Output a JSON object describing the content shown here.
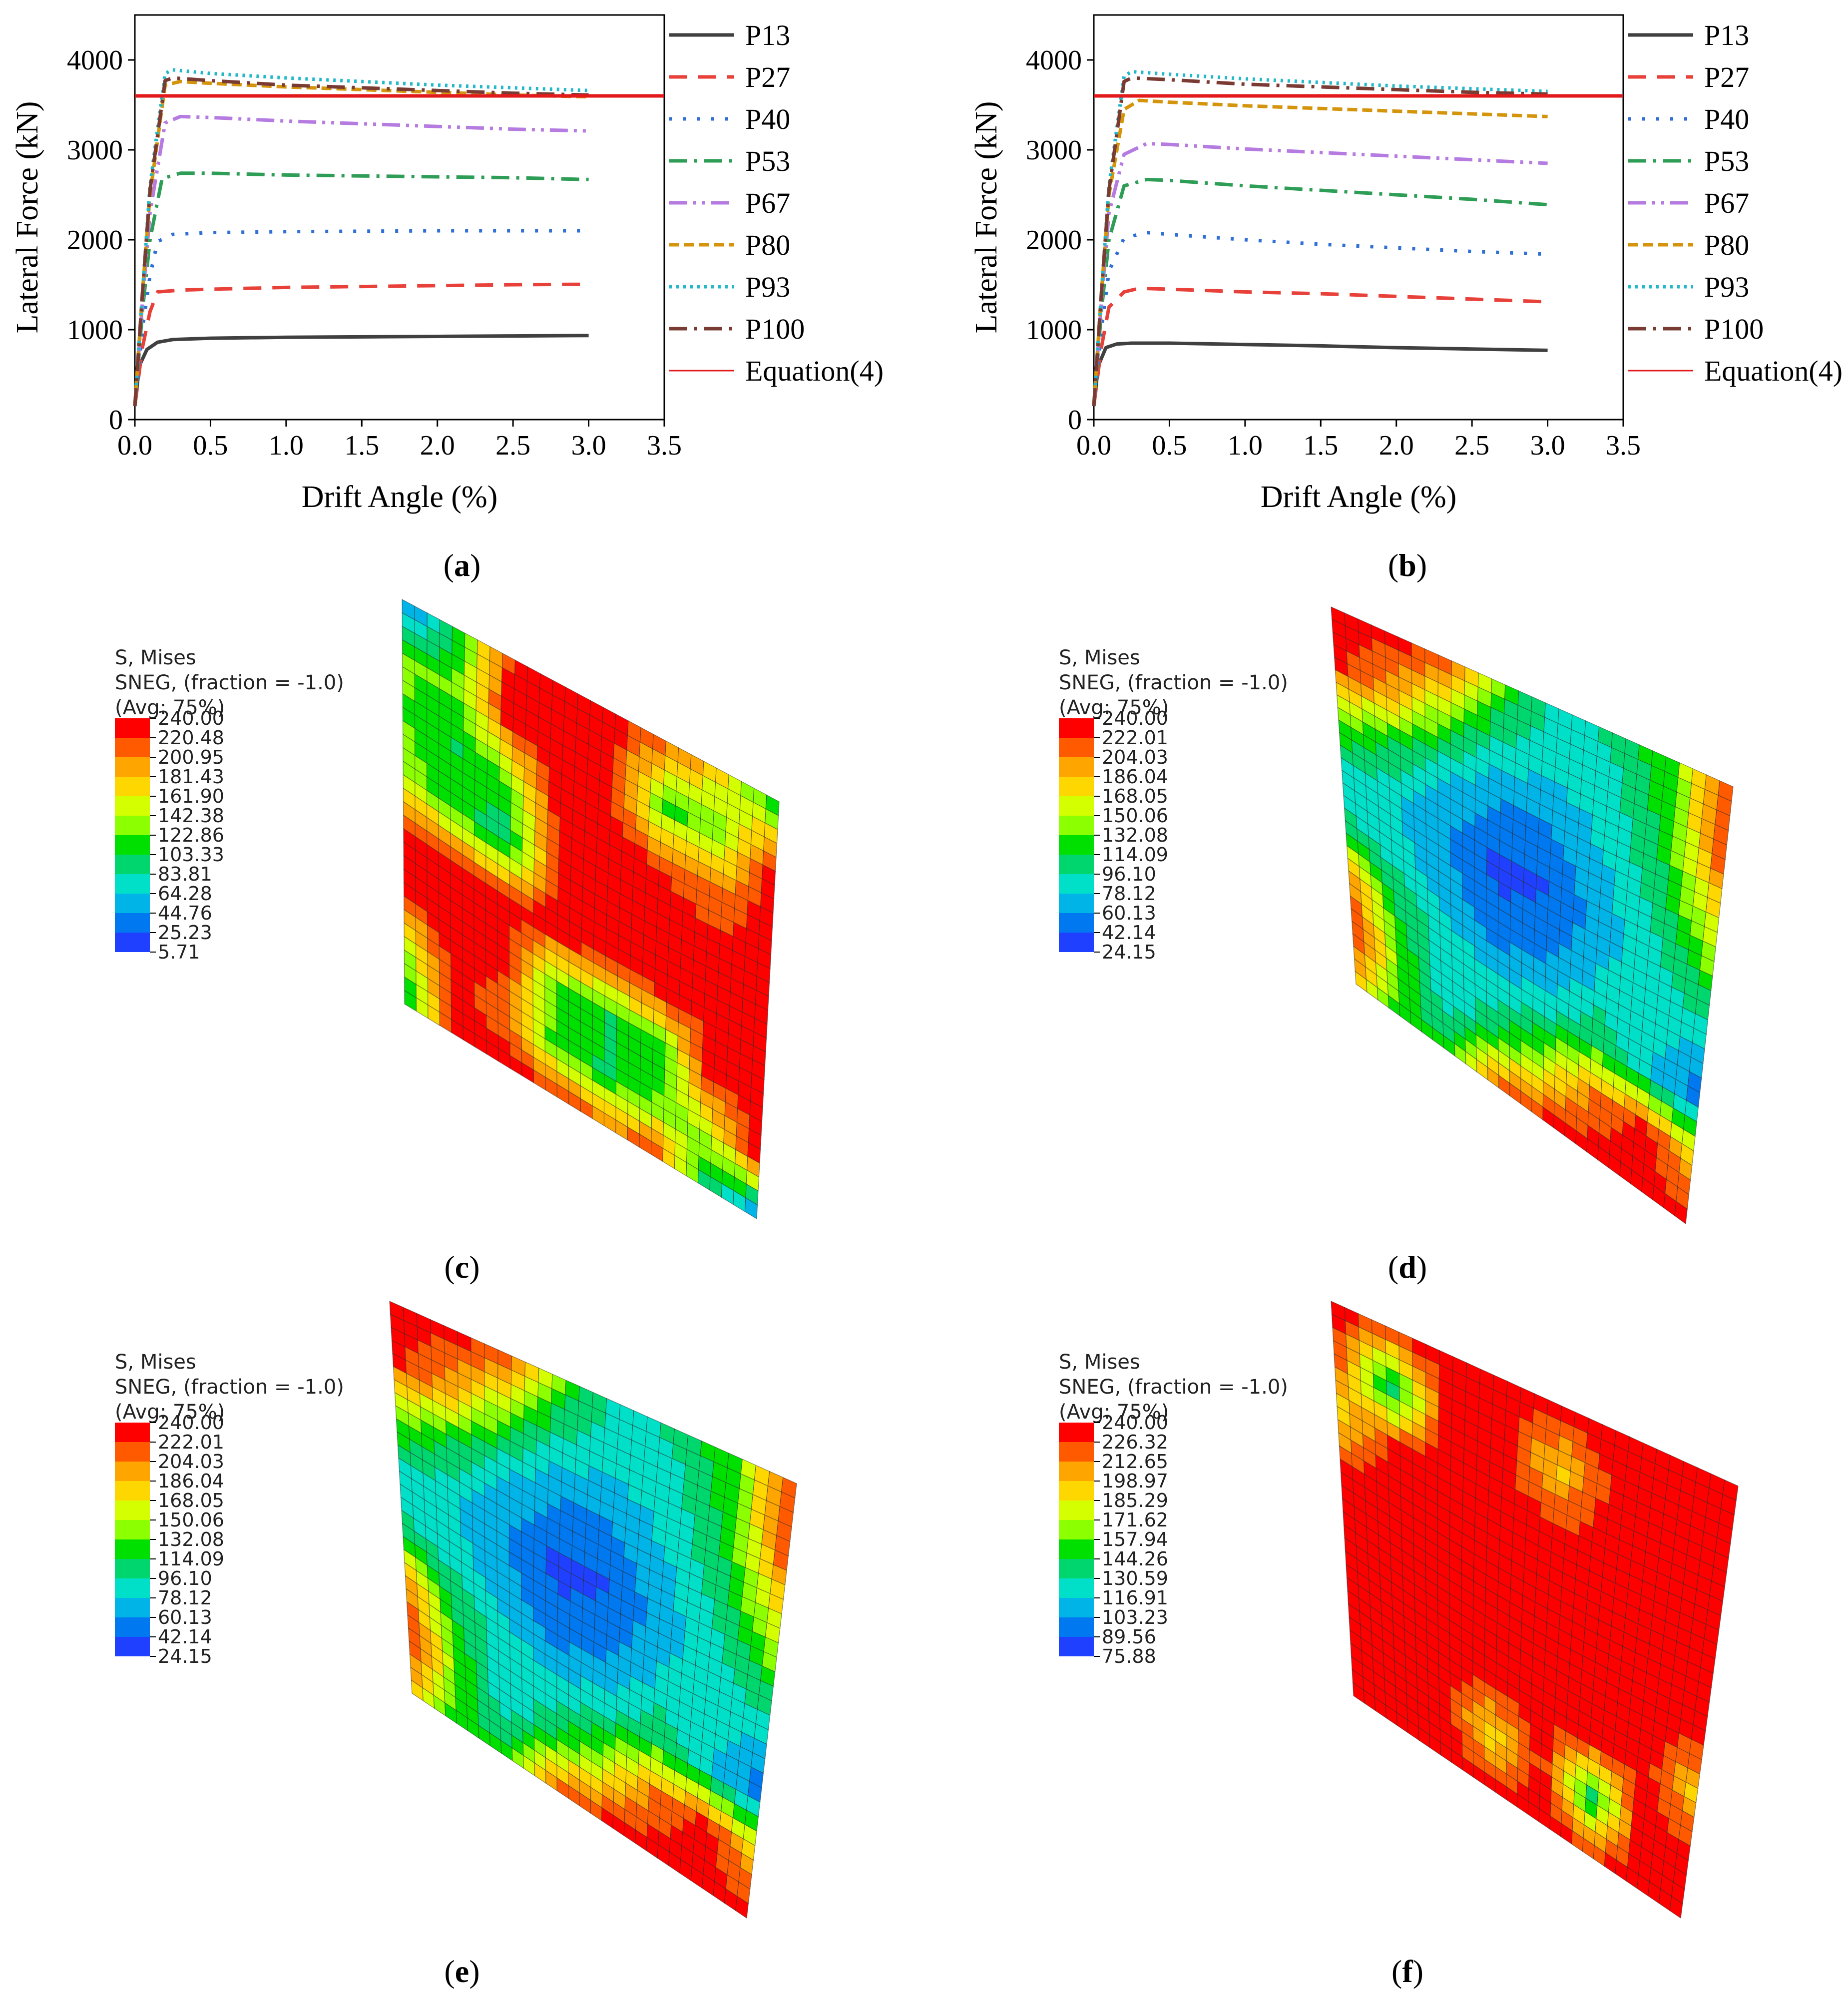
{
  "chart_data": [
    {
      "panel": "a",
      "type": "line",
      "xlabel": "Drift Angle (%)",
      "ylabel": "Lateral Force (kN)",
      "xlim": [
        0,
        3.5
      ],
      "ylim": [
        0,
        4500
      ],
      "xticks": [
        "0.0",
        "0.5",
        "1.0",
        "1.5",
        "2.0",
        "2.5",
        "3.0",
        "3.5"
      ],
      "yticks": [
        "0",
        "1000",
        "2000",
        "3000",
        "4000"
      ],
      "series": [
        {
          "name": "P13",
          "color": "#404040",
          "dash": "solid",
          "x": [
            0,
            0.03,
            0.08,
            0.15,
            0.25,
            0.5,
            1.0,
            1.5,
            2.0,
            2.5,
            3.0
          ],
          "y": [
            150,
            600,
            780,
            860,
            890,
            905,
            915,
            920,
            925,
            930,
            935
          ]
        },
        {
          "name": "P27",
          "color": "#e8413a",
          "dash": "dash",
          "x": [
            0,
            0.05,
            0.1,
            0.15,
            0.3,
            0.5,
            1.0,
            1.5,
            2.0,
            2.5,
            3.0
          ],
          "y": [
            150,
            800,
            1200,
            1420,
            1440,
            1450,
            1470,
            1480,
            1490,
            1500,
            1505
          ]
        },
        {
          "name": "P40",
          "color": "#2f6fd6",
          "dash": "dot",
          "x": [
            0,
            0.05,
            0.1,
            0.15,
            0.25,
            0.5,
            1.0,
            1.5,
            2.0,
            2.5,
            3.0
          ],
          "y": [
            150,
            1000,
            1600,
            1980,
            2060,
            2080,
            2090,
            2095,
            2100,
            2100,
            2100
          ]
        },
        {
          "name": "P53",
          "color": "#2e9e57",
          "dash": "dashdot",
          "x": [
            0,
            0.05,
            0.1,
            0.18,
            0.3,
            0.5,
            1.0,
            1.5,
            2.0,
            2.5,
            3.0
          ],
          "y": [
            150,
            1200,
            2000,
            2680,
            2740,
            2740,
            2720,
            2710,
            2700,
            2690,
            2670
          ]
        },
        {
          "name": "P67",
          "color": "#b57be0",
          "dash": "dashdotdot",
          "x": [
            0,
            0.05,
            0.1,
            0.2,
            0.3,
            0.5,
            1.0,
            1.5,
            2.0,
            2.5,
            3.0
          ],
          "y": [
            150,
            1300,
            2300,
            3300,
            3370,
            3360,
            3320,
            3290,
            3260,
            3230,
            3210
          ]
        },
        {
          "name": "P80",
          "color": "#d4940b",
          "dash": "shortdash",
          "x": [
            0,
            0.05,
            0.1,
            0.2,
            0.3,
            0.5,
            1.0,
            1.5,
            2.0,
            2.5,
            3.0
          ],
          "y": [
            150,
            1400,
            2500,
            3720,
            3760,
            3740,
            3700,
            3670,
            3640,
            3610,
            3590
          ]
        },
        {
          "name": "P93",
          "color": "#22b8c9",
          "dash": "shortdot",
          "x": [
            0,
            0.05,
            0.1,
            0.2,
            0.25,
            0.5,
            1.0,
            1.5,
            2.0,
            2.5,
            3.0
          ],
          "y": [
            150,
            1400,
            2600,
            3850,
            3890,
            3850,
            3800,
            3760,
            3720,
            3690,
            3660
          ]
        },
        {
          "name": "P100",
          "color": "#7a3b33",
          "dash": "dashdot",
          "x": [
            0,
            0.05,
            0.1,
            0.2,
            0.25,
            0.5,
            1.0,
            1.5,
            2.0,
            2.5,
            3.0
          ],
          "y": [
            150,
            1400,
            2550,
            3770,
            3800,
            3770,
            3720,
            3690,
            3660,
            3630,
            3610
          ]
        },
        {
          "name": "Equation(4)",
          "color": "#e31a1c",
          "dash": "solid",
          "x": [
            0,
            3.5
          ],
          "y": [
            3600,
            3600
          ]
        }
      ]
    },
    {
      "panel": "b",
      "type": "line",
      "xlabel": "Drift Angle (%)",
      "ylabel": "Lateral Force (kN)",
      "xlim": [
        0,
        3.5
      ],
      "ylim": [
        0,
        4500
      ],
      "xticks": [
        "0.0",
        "0.5",
        "1.0",
        "1.5",
        "2.0",
        "2.5",
        "3.0",
        "3.5"
      ],
      "yticks": [
        "0",
        "1000",
        "2000",
        "3000",
        "4000"
      ],
      "series": [
        {
          "name": "P13",
          "color": "#404040",
          "dash": "solid",
          "x": [
            0,
            0.03,
            0.08,
            0.15,
            0.25,
            0.5,
            1.0,
            1.5,
            2.0,
            2.5,
            3.0
          ],
          "y": [
            150,
            600,
            800,
            840,
            850,
            850,
            835,
            820,
            800,
            785,
            770
          ]
        },
        {
          "name": "P27",
          "color": "#e8413a",
          "dash": "dash",
          "x": [
            0,
            0.05,
            0.1,
            0.2,
            0.3,
            0.5,
            1.0,
            1.5,
            2.0,
            2.5,
            3.0
          ],
          "y": [
            150,
            800,
            1250,
            1420,
            1460,
            1450,
            1420,
            1400,
            1370,
            1340,
            1310
          ]
        },
        {
          "name": "P40",
          "color": "#2f6fd6",
          "dash": "dot",
          "x": [
            0,
            0.05,
            0.1,
            0.2,
            0.35,
            0.5,
            1.0,
            1.5,
            2.0,
            2.5,
            3.0
          ],
          "y": [
            150,
            1000,
            1650,
            2020,
            2080,
            2060,
            2000,
            1950,
            1910,
            1870,
            1840
          ]
        },
        {
          "name": "P53",
          "color": "#2e9e57",
          "dash": "dashdot",
          "x": [
            0,
            0.05,
            0.1,
            0.2,
            0.35,
            0.5,
            1.0,
            1.5,
            2.0,
            2.5,
            3.0
          ],
          "y": [
            150,
            1200,
            2000,
            2600,
            2670,
            2660,
            2600,
            2550,
            2500,
            2450,
            2390
          ]
        },
        {
          "name": "P67",
          "color": "#b57be0",
          "dash": "dashdotdot",
          "x": [
            0,
            0.05,
            0.1,
            0.2,
            0.35,
            0.5,
            1.0,
            1.5,
            2.0,
            2.5,
            3.0
          ],
          "y": [
            150,
            1300,
            2300,
            2950,
            3070,
            3060,
            3010,
            2970,
            2930,
            2890,
            2850
          ]
        },
        {
          "name": "P80",
          "color": "#d4940b",
          "dash": "shortdash",
          "x": [
            0,
            0.05,
            0.1,
            0.2,
            0.3,
            0.5,
            1.0,
            1.5,
            2.0,
            2.5,
            3.0
          ],
          "y": [
            150,
            1400,
            2500,
            3450,
            3550,
            3530,
            3490,
            3460,
            3430,
            3400,
            3370
          ]
        },
        {
          "name": "P93",
          "color": "#22b8c9",
          "dash": "shortdot",
          "x": [
            0,
            0.05,
            0.1,
            0.2,
            0.25,
            0.5,
            1.0,
            1.5,
            2.0,
            2.5,
            3.0
          ],
          "y": [
            150,
            1400,
            2600,
            3820,
            3870,
            3840,
            3790,
            3750,
            3710,
            3680,
            3650
          ]
        },
        {
          "name": "P100",
          "color": "#7a3b33",
          "dash": "dashdot",
          "x": [
            0,
            0.05,
            0.1,
            0.2,
            0.25,
            0.5,
            1.0,
            1.5,
            2.0,
            2.5,
            3.0
          ],
          "y": [
            150,
            1400,
            2550,
            3760,
            3800,
            3780,
            3730,
            3700,
            3670,
            3640,
            3620
          ]
        },
        {
          "name": "Equation(4)",
          "color": "#e31a1c",
          "dash": "solid",
          "x": [
            0,
            3.5
          ],
          "y": [
            3600,
            3600
          ]
        }
      ]
    },
    {
      "panel": "c",
      "type": "heatmap",
      "legend_header": [
        "S, Mises",
        "SNEG, (fraction = -1.0)",
        "(Avg: 75%)"
      ],
      "levels": [
        "240.00",
        "220.48",
        "200.95",
        "181.43",
        "161.90",
        "142.38",
        "122.86",
        "103.33",
        "83.81",
        "64.28",
        "44.76",
        "25.23",
        "5.71"
      ],
      "dominant": "mixed",
      "field": [
        [
          0.15,
          0.45,
          0.95,
          1.0,
          1.0,
          0.9,
          0.75,
          0.4
        ],
        [
          0.55,
          0.55,
          1.0,
          1.0,
          0.95,
          0.5,
          0.55,
          1.0
        ],
        [
          0.55,
          0.45,
          0.55,
          1.0,
          1.0,
          0.95,
          0.9,
          1.0
        ],
        [
          0.6,
          0.5,
          0.4,
          0.95,
          1.0,
          1.0,
          1.0,
          1.0
        ],
        [
          0.95,
          1.0,
          1.0,
          1.0,
          1.0,
          1.0,
          1.0,
          1.0
        ],
        [
          1.0,
          1.0,
          1.0,
          0.55,
          0.45,
          0.5,
          1.0,
          1.0
        ],
        [
          0.6,
          1.0,
          0.9,
          0.5,
          0.45,
          0.55,
          0.65,
          1.0
        ],
        [
          0.4,
          1.0,
          1.0,
          1.0,
          0.9,
          0.95,
          0.4,
          0.15
        ]
      ]
    },
    {
      "panel": "d",
      "type": "heatmap",
      "legend_header": [
        "S, Mises",
        "SNEG, (fraction = -1.0)",
        "(Avg: 75%)"
      ],
      "levels": [
        "240.00",
        "222.01",
        "204.03",
        "186.04",
        "168.05",
        "150.06",
        "132.08",
        "114.09",
        "96.10",
        "78.12",
        "60.13",
        "42.14",
        "24.15"
      ],
      "dominant": "mixed",
      "field": [
        [
          1.0,
          1.0,
          0.95,
          0.55,
          0.35,
          0.4,
          0.55,
          1.0
        ],
        [
          1.0,
          0.85,
          0.55,
          0.35,
          0.3,
          0.35,
          0.5,
          1.0
        ],
        [
          0.6,
          0.45,
          0.3,
          0.2,
          0.2,
          0.3,
          0.45,
          0.75
        ],
        [
          0.35,
          0.3,
          0.2,
          0.1,
          0.12,
          0.25,
          0.35,
          0.55
        ],
        [
          0.4,
          0.35,
          0.25,
          0.15,
          0.2,
          0.3,
          0.35,
          0.3
        ],
        [
          0.9,
          0.45,
          0.35,
          0.3,
          0.35,
          0.45,
          0.3,
          0.15
        ],
        [
          1.0,
          0.55,
          0.3,
          0.45,
          0.65,
          0.9,
          1.0,
          0.8
        ],
        [
          0.8,
          0.45,
          0.5,
          0.95,
          1.0,
          1.0,
          1.0,
          1.0
        ]
      ]
    },
    {
      "panel": "e",
      "type": "heatmap",
      "legend_header": [
        "S, Mises",
        "SNEG, (fraction = -1.0)",
        "(Avg: 75%)"
      ],
      "levels": [
        "240.00",
        "222.01",
        "204.03",
        "186.04",
        "168.05",
        "150.06",
        "132.08",
        "114.09",
        "96.10",
        "78.12",
        "60.13",
        "42.14",
        "24.15"
      ],
      "dominant": "mixed",
      "field": [
        [
          1.0,
          1.0,
          0.95,
          0.55,
          0.35,
          0.4,
          0.55,
          1.0
        ],
        [
          1.0,
          0.85,
          0.55,
          0.35,
          0.3,
          0.35,
          0.5,
          1.0
        ],
        [
          0.6,
          0.45,
          0.3,
          0.2,
          0.2,
          0.3,
          0.45,
          0.75
        ],
        [
          0.35,
          0.3,
          0.2,
          0.1,
          0.12,
          0.25,
          0.35,
          0.55
        ],
        [
          0.4,
          0.35,
          0.25,
          0.15,
          0.2,
          0.3,
          0.35,
          0.3
        ],
        [
          0.9,
          0.45,
          0.35,
          0.3,
          0.35,
          0.45,
          0.3,
          0.15
        ],
        [
          1.0,
          0.55,
          0.3,
          0.45,
          0.65,
          0.9,
          1.0,
          0.8
        ],
        [
          0.8,
          0.45,
          0.5,
          0.95,
          1.0,
          1.0,
          1.0,
          1.0
        ]
      ]
    },
    {
      "panel": "f",
      "type": "heatmap",
      "legend_header": [
        "S, Mises",
        "SNEG, (fraction = -1.0)",
        "(Avg: 75%)"
      ],
      "levels": [
        "240.00",
        "226.32",
        "212.65",
        "198.97",
        "185.29",
        "171.62",
        "157.94",
        "144.26",
        "130.59",
        "116.91",
        "103.23",
        "89.56",
        "75.88"
      ],
      "dominant": "red",
      "field": [
        [
          1.0,
          1.0,
          1.0,
          1.0,
          1.0,
          1.0,
          1.0,
          1.0
        ],
        [
          1.0,
          0.35,
          1.0,
          1.0,
          0.75,
          1.0,
          1.0,
          1.0
        ],
        [
          0.7,
          1.0,
          1.0,
          1.0,
          1.0,
          1.0,
          1.0,
          1.0
        ],
        [
          1.0,
          1.0,
          1.0,
          1.0,
          1.0,
          1.0,
          1.0,
          1.0
        ],
        [
          1.0,
          1.0,
          1.0,
          1.0,
          1.0,
          1.0,
          1.0,
          1.0
        ],
        [
          1.0,
          1.0,
          1.0,
          1.0,
          1.0,
          1.0,
          1.0,
          0.75
        ],
        [
          1.0,
          1.0,
          1.0,
          0.7,
          1.0,
          0.4,
          1.0,
          1.0
        ],
        [
          1.0,
          1.0,
          1.0,
          1.0,
          1.0,
          1.0,
          1.0,
          1.0
        ]
      ]
    }
  ],
  "contour_palette": [
    "#ff0000",
    "#ff5a00",
    "#ffa500",
    "#ffd700",
    "#d4ff00",
    "#8cff00",
    "#00e000",
    "#00d66e",
    "#00e0c8",
    "#00b4e8",
    "#0078f0",
    "#2040ff",
    "#0000ff"
  ],
  "captions": {
    "a": "(a)",
    "b": "(b)",
    "c": "(c)",
    "d": "(d)",
    "e": "(e)",
    "f": "(f)"
  }
}
